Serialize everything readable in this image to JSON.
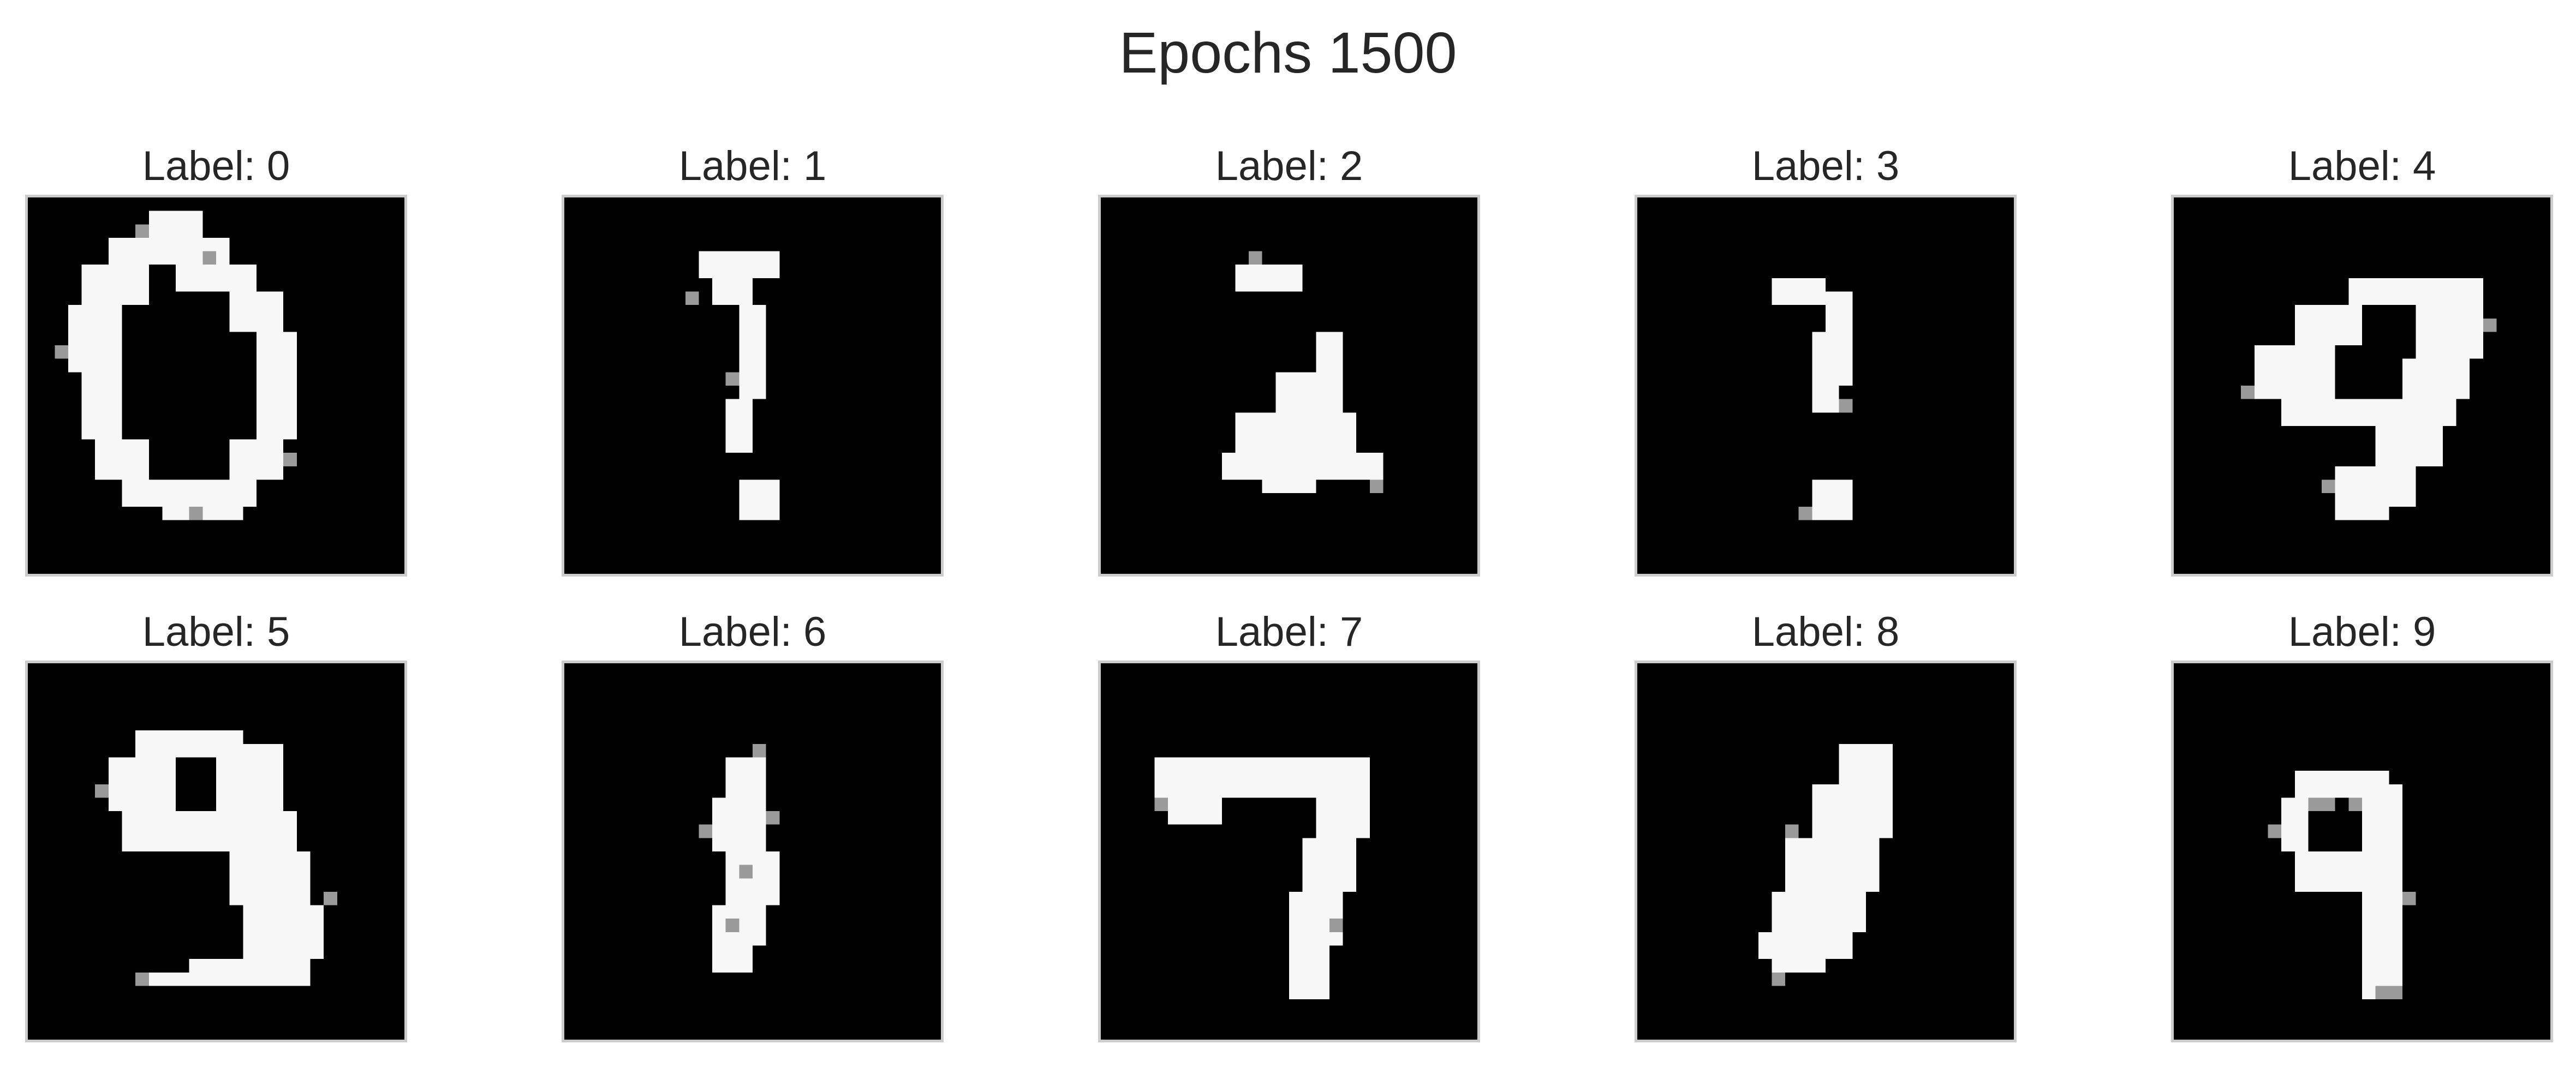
{
  "figure": {
    "title": "Epochs 1500"
  },
  "panels": [
    {
      "label": "Label: 0",
      "digit_drawn": "0"
    },
    {
      "label": "Label: 1",
      "digit_drawn": "!"
    },
    {
      "label": "Label: 2",
      "digit_drawn": "2"
    },
    {
      "label": "Label: 3",
      "digit_drawn": "?"
    },
    {
      "label": "Label: 4",
      "digit_drawn": "9"
    },
    {
      "label": "Label: 5",
      "digit_drawn": "9"
    },
    {
      "label": "Label: 6",
      "digit_drawn": "6"
    },
    {
      "label": "Label: 7",
      "digit_drawn": "7"
    },
    {
      "label": "Label: 8",
      "digit_drawn": "1"
    },
    {
      "label": "Label: 9",
      "digit_drawn": "4"
    }
  ],
  "colors": {
    "image_background": "#000000",
    "stroke": "#f7f7f7",
    "frame": "#cccccc",
    "text": "#262626"
  }
}
